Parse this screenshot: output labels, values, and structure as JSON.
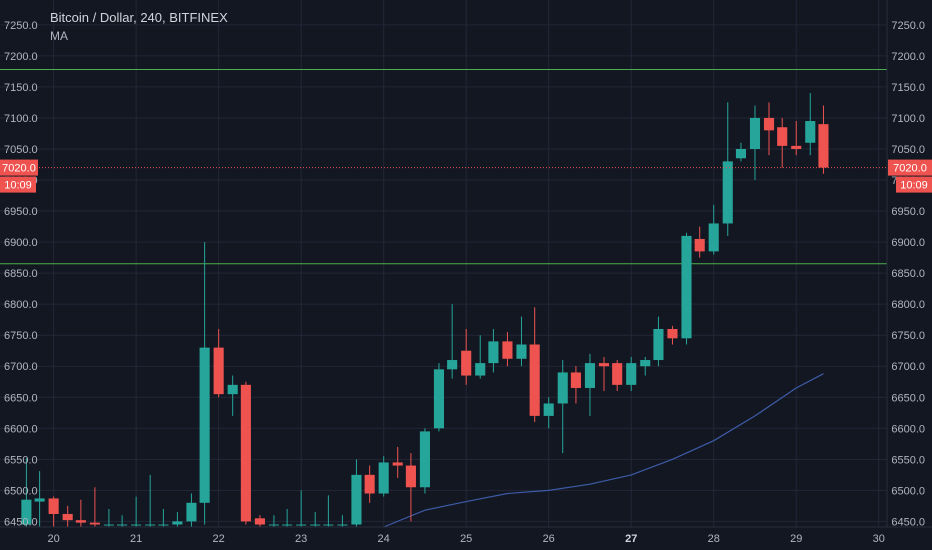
{
  "header": {
    "symbol": "Bitcoin / Dollar, 240, BITFINEX",
    "indicator": "MA"
  },
  "colors": {
    "background": "#131722",
    "grid": "#232736",
    "axis_text": "#b2b5be",
    "up": "#26a69a",
    "down": "#ef5350",
    "ma_line": "#3d5ba8",
    "support_resistance": "#4caf50",
    "price_tag": "#ef5350"
  },
  "chart_data": {
    "type": "candlestick",
    "title": "Bitcoin / Dollar, 240, BITFINEX",
    "xlim": [
      19.35,
      30.1
    ],
    "ylim": [
      6441,
      7290
    ],
    "y_ticks": [
      6450,
      6500,
      6550,
      6600,
      6650,
      6700,
      6750,
      6800,
      6850,
      6900,
      6950,
      7000,
      7050,
      7100,
      7150,
      7200,
      7250
    ],
    "x_ticks": [
      {
        "x": 20,
        "label": "20",
        "bold": false
      },
      {
        "x": 21,
        "label": "21",
        "bold": false
      },
      {
        "x": 22,
        "label": "22",
        "bold": false
      },
      {
        "x": 23,
        "label": "23",
        "bold": false
      },
      {
        "x": 24,
        "label": "24",
        "bold": false
      },
      {
        "x": 25,
        "label": "25",
        "bold": false
      },
      {
        "x": 26,
        "label": "26",
        "bold": false
      },
      {
        "x": 27,
        "label": "27",
        "bold": true
      },
      {
        "x": 28,
        "label": "28",
        "bold": false
      },
      {
        "x": 29,
        "label": "29",
        "bold": false
      },
      {
        "x": 30,
        "label": "30",
        "bold": false
      }
    ],
    "grid": true,
    "candles": [
      {
        "x": 19.67,
        "o": 6445,
        "h": 6552,
        "l": 6440,
        "c": 6485
      },
      {
        "x": 19.83,
        "o": 6482,
        "h": 6531,
        "l": 6440,
        "c": 6487
      },
      {
        "x": 20.0,
        "o": 6487,
        "h": 6490,
        "l": 6440,
        "c": 6462
      },
      {
        "x": 20.17,
        "o": 6462,
        "h": 6475,
        "l": 6440,
        "c": 6452
      },
      {
        "x": 20.33,
        "o": 6452,
        "h": 6485,
        "l": 6440,
        "c": 6448
      },
      {
        "x": 20.5,
        "o": 6448,
        "h": 6505,
        "l": 6440,
        "c": 6445
      },
      {
        "x": 20.67,
        "o": 6445,
        "h": 6470,
        "l": 6440,
        "c": 6445
      },
      {
        "x": 20.83,
        "o": 6445,
        "h": 6460,
        "l": 6440,
        "c": 6445
      },
      {
        "x": 21.0,
        "o": 6445,
        "h": 6490,
        "l": 6440,
        "c": 6445
      },
      {
        "x": 21.17,
        "o": 6445,
        "h": 6525,
        "l": 6440,
        "c": 6445
      },
      {
        "x": 21.33,
        "o": 6445,
        "h": 6470,
        "l": 6440,
        "c": 6445
      },
      {
        "x": 21.5,
        "o": 6445,
        "h": 6465,
        "l": 6440,
        "c": 6450
      },
      {
        "x": 21.67,
        "o": 6450,
        "h": 6495,
        "l": 6440,
        "c": 6480
      },
      {
        "x": 21.83,
        "o": 6480,
        "h": 6900,
        "l": 6445,
        "c": 6730
      },
      {
        "x": 22.0,
        "o": 6730,
        "h": 6760,
        "l": 6650,
        "c": 6655
      },
      {
        "x": 22.17,
        "o": 6655,
        "h": 6685,
        "l": 6620,
        "c": 6670
      },
      {
        "x": 22.33,
        "o": 6670,
        "h": 6675,
        "l": 6445,
        "c": 6450
      },
      {
        "x": 22.5,
        "o": 6455,
        "h": 6460,
        "l": 6440,
        "c": 6445
      },
      {
        "x": 22.67,
        "o": 6445,
        "h": 6460,
        "l": 6440,
        "c": 6445
      },
      {
        "x": 22.83,
        "o": 6445,
        "h": 6470,
        "l": 6440,
        "c": 6445
      },
      {
        "x": 23.0,
        "o": 6445,
        "h": 6500,
        "l": 6440,
        "c": 6445
      },
      {
        "x": 23.17,
        "o": 6445,
        "h": 6465,
        "l": 6440,
        "c": 6445
      },
      {
        "x": 23.33,
        "o": 6445,
        "h": 6492,
        "l": 6440,
        "c": 6445
      },
      {
        "x": 23.5,
        "o": 6445,
        "h": 6460,
        "l": 6440,
        "c": 6445
      },
      {
        "x": 23.67,
        "o": 6445,
        "h": 6550,
        "l": 6440,
        "c": 6525
      },
      {
        "x": 23.83,
        "o": 6525,
        "h": 6540,
        "l": 6480,
        "c": 6495
      },
      {
        "x": 24.0,
        "o": 6495,
        "h": 6555,
        "l": 6490,
        "c": 6545
      },
      {
        "x": 24.17,
        "o": 6545,
        "h": 6570,
        "l": 6520,
        "c": 6540
      },
      {
        "x": 24.33,
        "o": 6540,
        "h": 6560,
        "l": 6450,
        "c": 6505
      },
      {
        "x": 24.5,
        "o": 6505,
        "h": 6600,
        "l": 6495,
        "c": 6595
      },
      {
        "x": 24.67,
        "o": 6600,
        "h": 6705,
        "l": 6595,
        "c": 6695
      },
      {
        "x": 24.83,
        "o": 6695,
        "h": 6800,
        "l": 6680,
        "c": 6710
      },
      {
        "x": 25.0,
        "o": 6725,
        "h": 6760,
        "l": 6670,
        "c": 6685
      },
      {
        "x": 25.17,
        "o": 6685,
        "h": 6750,
        "l": 6680,
        "c": 6705
      },
      {
        "x": 25.33,
        "o": 6705,
        "h": 6760,
        "l": 6690,
        "c": 6740
      },
      {
        "x": 25.5,
        "o": 6740,
        "h": 6755,
        "l": 6700,
        "c": 6712
      },
      {
        "x": 25.67,
        "o": 6712,
        "h": 6780,
        "l": 6700,
        "c": 6735
      },
      {
        "x": 25.83,
        "o": 6735,
        "h": 6795,
        "l": 6610,
        "c": 6620
      },
      {
        "x": 26.0,
        "o": 6620,
        "h": 6650,
        "l": 6600,
        "c": 6640
      },
      {
        "x": 26.17,
        "o": 6640,
        "h": 6710,
        "l": 6560,
        "c": 6690
      },
      {
        "x": 26.33,
        "o": 6690,
        "h": 6700,
        "l": 6640,
        "c": 6665
      },
      {
        "x": 26.5,
        "o": 6665,
        "h": 6720,
        "l": 6620,
        "c": 6705
      },
      {
        "x": 26.67,
        "o": 6705,
        "h": 6715,
        "l": 6660,
        "c": 6700
      },
      {
        "x": 26.83,
        "o": 6705,
        "h": 6710,
        "l": 6660,
        "c": 6670
      },
      {
        "x": 27.0,
        "o": 6670,
        "h": 6715,
        "l": 6660,
        "c": 6705
      },
      {
        "x": 27.17,
        "o": 6700,
        "h": 6715,
        "l": 6685,
        "c": 6710
      },
      {
        "x": 27.33,
        "o": 6710,
        "h": 6780,
        "l": 6700,
        "c": 6760
      },
      {
        "x": 27.5,
        "o": 6760,
        "h": 6765,
        "l": 6735,
        "c": 6745
      },
      {
        "x": 27.67,
        "o": 6745,
        "h": 6915,
        "l": 6735,
        "c": 6910
      },
      {
        "x": 27.83,
        "o": 6905,
        "h": 6925,
        "l": 6875,
        "c": 6885
      },
      {
        "x": 28.0,
        "o": 6885,
        "h": 6960,
        "l": 6880,
        "c": 6930
      },
      {
        "x": 28.17,
        "o": 6930,
        "h": 7125,
        "l": 6910,
        "c": 7030
      },
      {
        "x": 28.33,
        "o": 7035,
        "h": 7060,
        "l": 7030,
        "c": 7050
      },
      {
        "x": 28.5,
        "o": 7050,
        "h": 7120,
        "l": 7000,
        "c": 7100
      },
      {
        "x": 28.67,
        "o": 7100,
        "h": 7125,
        "l": 7040,
        "c": 7080
      },
      {
        "x": 28.83,
        "o": 7085,
        "h": 7100,
        "l": 7020,
        "c": 7055
      },
      {
        "x": 29.0,
        "o": 7055,
        "h": 7095,
        "l": 7040,
        "c": 7050
      },
      {
        "x": 29.17,
        "o": 7060,
        "h": 7140,
        "l": 7040,
        "c": 7095
      },
      {
        "x": 29.33,
        "o": 7090,
        "h": 7120,
        "l": 7010,
        "c": 7020
      }
    ],
    "ma_line": [
      {
        "x": 24.0,
        "y": 6441
      },
      {
        "x": 24.5,
        "y": 6468
      },
      {
        "x": 25.0,
        "y": 6482
      },
      {
        "x": 25.5,
        "y": 6495
      },
      {
        "x": 26.0,
        "y": 6500
      },
      {
        "x": 26.5,
        "y": 6510
      },
      {
        "x": 27.0,
        "y": 6525
      },
      {
        "x": 27.5,
        "y": 6550
      },
      {
        "x": 28.0,
        "y": 6580
      },
      {
        "x": 28.5,
        "y": 6620
      },
      {
        "x": 29.0,
        "y": 6665
      },
      {
        "x": 29.33,
        "y": 6688
      }
    ],
    "horizontal_lines": [
      {
        "y": 7178
      },
      {
        "y": 6865
      }
    ],
    "current_price": {
      "value": 7020,
      "label": "7020.0",
      "countdown": "10:09"
    }
  }
}
